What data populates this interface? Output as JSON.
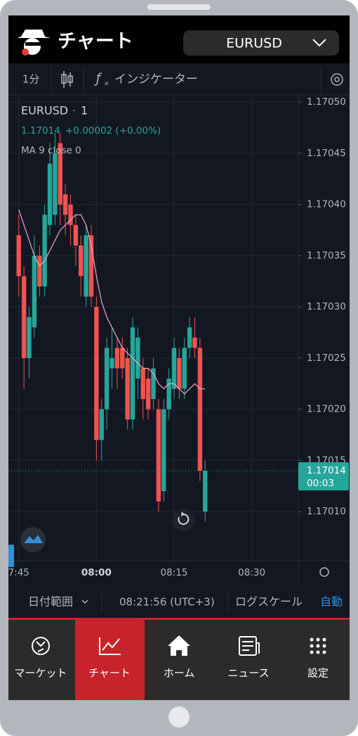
{
  "header": {
    "title": "チャート",
    "symbol_select": "EURUSD"
  },
  "toolbar": {
    "interval": "1分",
    "indicators": "インジケーター"
  },
  "legend": {
    "symbol": "EURUSD",
    "interval": "1",
    "quote": "1.17014",
    "change": "+0.00002 (+0.00%)"
  },
  "chart_data": {
    "type": "candlestick",
    "x": [
      "07:45",
      "07:46",
      "07:47",
      "07:48",
      "07:49",
      "07:50",
      "07:51",
      "07:52",
      "07:53",
      "07:54",
      "07:55",
      "07:56",
      "07:57",
      "07:58",
      "07:59",
      "08:00",
      "08:01",
      "08:02",
      "08:03",
      "08:04",
      "08:05",
      "08:06",
      "08:07",
      "08:08",
      "08:09",
      "08:10",
      "08:11",
      "08:12",
      "08:13",
      "08:14",
      "08:15",
      "08:16",
      "08:17",
      "08:18",
      "08:19",
      "08:20",
      "08:21"
    ],
    "open": [
      1.17037,
      1.17033,
      1.17025,
      1.17028,
      1.17035,
      1.17032,
      1.17038,
      1.17039,
      1.17046,
      1.17041,
      1.1704,
      1.17038,
      1.17036,
      1.17031,
      1.17037,
      1.1703,
      1.17017,
      1.1702,
      1.17024,
      1.17026,
      1.17026,
      1.17025,
      1.17019,
      1.17023,
      1.17024,
      1.17023,
      1.17021,
      1.1702,
      1.17012,
      1.1702,
      1.17022,
      1.17025,
      1.17022,
      1.17026,
      1.17027,
      1.17026,
      1.1701
    ],
    "high": [
      1.17039,
      1.17034,
      1.1703,
      1.17037,
      1.17036,
      1.1704,
      1.17046,
      1.17047,
      1.17047,
      1.17042,
      1.17041,
      1.17039,
      1.17037,
      1.17038,
      1.17038,
      1.17031,
      1.17021,
      1.17027,
      1.17028,
      1.17027,
      1.17027,
      1.17026,
      1.17029,
      1.17028,
      1.17025,
      1.17024,
      1.17025,
      1.17021,
      1.17021,
      1.17024,
      1.17027,
      1.17026,
      1.17027,
      1.17029,
      1.17029,
      1.17027,
      1.17015
    ],
    "low": [
      1.17031,
      1.17022,
      1.17023,
      1.17027,
      1.17031,
      1.17031,
      1.17037,
      1.17038,
      1.17038,
      1.17037,
      1.17036,
      1.17034,
      1.17031,
      1.1703,
      1.1703,
      1.17015,
      1.17015,
      1.17018,
      1.17022,
      1.17022,
      1.17023,
      1.17018,
      1.17018,
      1.17021,
      1.17019,
      1.17019,
      1.1702,
      1.1701,
      1.17011,
      1.17019,
      1.17021,
      1.17021,
      1.17021,
      1.17025,
      1.17025,
      1.17013,
      1.17009
    ],
    "close": [
      1.17033,
      1.17025,
      1.17029,
      1.17035,
      1.17032,
      1.17039,
      1.17044,
      1.17045,
      1.1704,
      1.17039,
      1.17038,
      1.17036,
      1.17033,
      1.17037,
      1.17031,
      1.17017,
      1.1702,
      1.17026,
      1.17025,
      1.17024,
      1.17024,
      1.17019,
      1.17028,
      1.17027,
      1.17021,
      1.1702,
      1.17024,
      1.17011,
      1.1702,
      1.17023,
      1.17026,
      1.17022,
      1.17026,
      1.17028,
      1.17026,
      1.17014,
      1.17014
    ],
    "up_color": "#26a69a",
    "down_color": "#ef5350",
    "ma": {
      "name": "MA 9 close 0",
      "color": "#f4a6c8",
      "values": [
        1.170395,
        1.17038,
        1.170365,
        1.17035,
        1.17034,
        1.170345,
        1.170355,
        1.170365,
        1.170375,
        1.17038,
        1.170385,
        1.17039,
        1.17039,
        1.17038,
        1.17036,
        1.17033,
        1.170305,
        1.17029,
        1.17028,
        1.17027,
        1.17026,
        1.170255,
        1.17025,
        1.170245,
        1.17024,
        1.17024,
        1.170235,
        1.170225,
        1.17022,
        1.170225,
        1.170225,
        1.17022,
        1.170215,
        1.17022,
        1.170225,
        1.17022,
        1.17022
      ]
    },
    "last_price": 1.17014,
    "countdown": "00:03",
    "ylim": [
      1.170052,
      1.170507
    ],
    "yticks": [
      {
        "value": 1.1705,
        "label": "1.17050"
      },
      1.17045,
      {
        "value": 1.1704,
        "label": "1.17040"
      },
      1.17035,
      {
        "value": 1.1703,
        "label": "1.17030"
      },
      1.17025,
      {
        "value": 1.1702,
        "label": "1.17020"
      },
      1.17015,
      {
        "value": 1.1701,
        "label": "1.17010"
      }
    ],
    "xlim": [
      "07:43",
      "08:39"
    ],
    "xticks": [
      {
        "value": "07:45",
        "label": "7:45"
      },
      "08:00",
      "08:15",
      "08:30"
    ],
    "grid": true
  },
  "bottom_bar": {
    "date_range": "日付範囲",
    "clock": "08:21:56 (UTC+3)",
    "log_scale": "ログスケール",
    "auto": "自動"
  },
  "nav": [
    "マーケット",
    "チャート",
    "ホーム",
    "ニュース",
    "設定"
  ]
}
